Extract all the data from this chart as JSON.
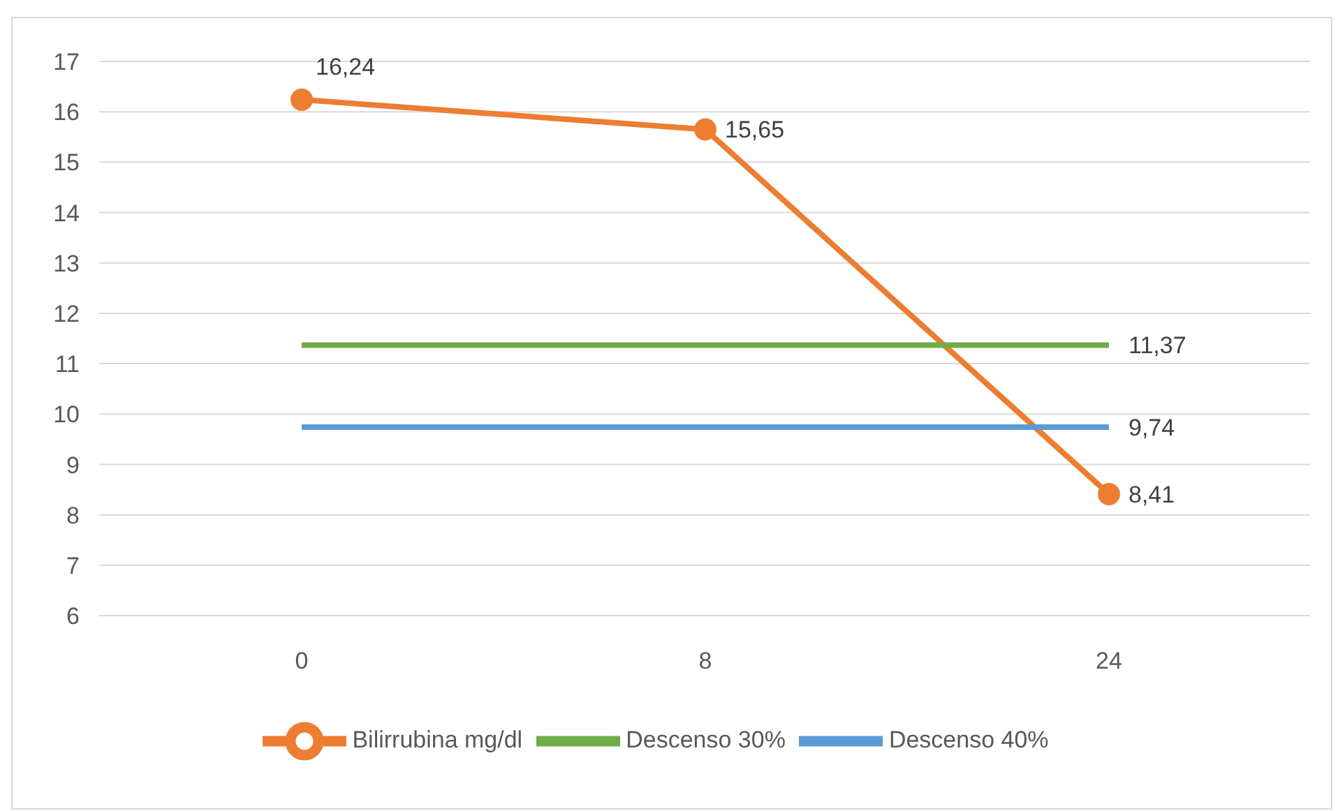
{
  "chart_data": {
    "type": "line",
    "categories": [
      "0",
      "8",
      "24"
    ],
    "series": [
      {
        "name": "Bilirrubina mg/dl",
        "color": "#ed7d31",
        "marker": "circle",
        "values": [
          16.24,
          15.65,
          8.41
        ],
        "value_labels": [
          "16,24",
          "15,65",
          "8,41"
        ]
      },
      {
        "name": "Descenso 30%",
        "color": "#70ad47",
        "marker": "none",
        "values": [
          11.37,
          11.37,
          11.37
        ],
        "value_labels": [
          null,
          null,
          "11,37"
        ]
      },
      {
        "name": "Descenso 40%",
        "color": "#5b9bd5",
        "marker": "none",
        "values": [
          9.74,
          9.74,
          9.74
        ],
        "value_labels": [
          null,
          null,
          "9,74"
        ]
      }
    ],
    "ylim": [
      6,
      17
    ],
    "yticks": [
      6,
      7,
      8,
      9,
      10,
      11,
      12,
      13,
      14,
      15,
      16,
      17
    ],
    "grid": "y",
    "legend": "bottom"
  }
}
